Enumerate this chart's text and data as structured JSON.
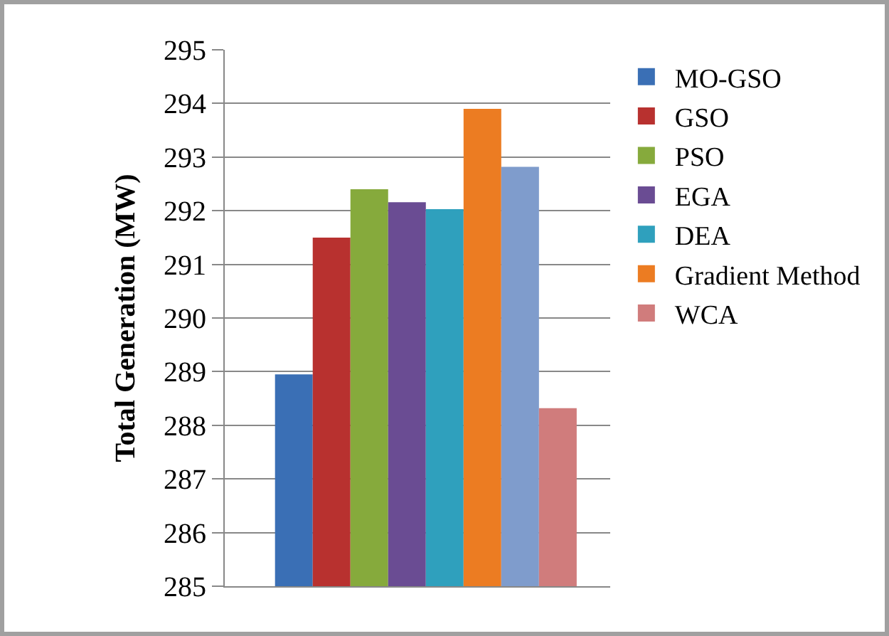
{
  "chart_data": {
    "type": "bar",
    "ylabel": "Total Generation (MW)",
    "categories": [
      null
    ],
    "series": [
      {
        "name": "MO-GSO",
        "color": "#3a6fb5",
        "values": [
          288.95
        ]
      },
      {
        "name": "GSO",
        "color": "#b8312f",
        "values": [
          291.5
        ]
      },
      {
        "name": "PSO",
        "color": "#86aa3c",
        "values": [
          292.4
        ]
      },
      {
        "name": "EGA",
        "color": "#6a4c93",
        "values": [
          292.16
        ]
      },
      {
        "name": "DEA",
        "color": "#2fa0bd",
        "values": [
          292.03
        ]
      },
      {
        "name": "Gradient Method",
        "color": "#ec7c22",
        "values": [
          293.9
        ]
      },
      {
        "color": "#7f9ccc",
        "values": [
          292.82
        ]
      },
      {
        "name": "WCA",
        "color": "#d07c7c",
        "values": [
          288.32
        ]
      }
    ],
    "ylim": [
      285,
      295
    ],
    "yticks": [
      285,
      286,
      287,
      288,
      289,
      290,
      291,
      292,
      293,
      294,
      295
    ],
    "grid": "y",
    "legend": "right"
  }
}
